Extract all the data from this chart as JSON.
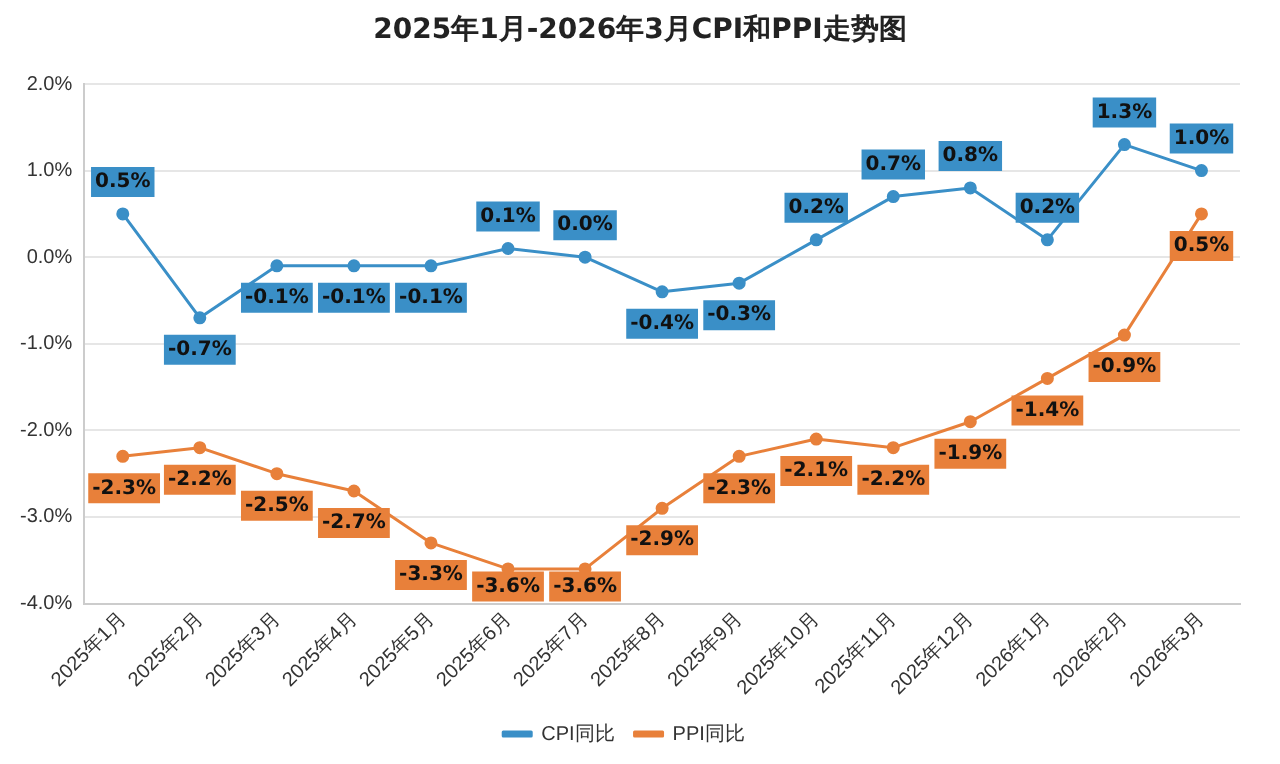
{
  "chart_data": {
    "type": "line",
    "title": "2025年1月-2026年3月CPI和PPI走势图",
    "categories": [
      "2025年1月",
      "2025年2月",
      "2025年3月",
      "2025年4月",
      "2025年5月",
      "2025年6月",
      "2025年7月",
      "2025年8月",
      "2025年9月",
      "2025年10月",
      "2025年11月",
      "2025年12月",
      "2026年1月",
      "2026年2月",
      "2026年3月"
    ],
    "series": [
      {
        "name": "CPI同比",
        "color": "#3a8fc7",
        "values": [
          0.5,
          -0.7,
          -0.1,
          -0.1,
          -0.1,
          0.1,
          0.0,
          -0.4,
          -0.3,
          0.2,
          0.7,
          0.8,
          0.2,
          1.3,
          1.0
        ],
        "value_labels": [
          "0.5%",
          "-0.7%",
          "-0.1%",
          "-0.1%",
          "-0.1%",
          "0.1%",
          "0.0%",
          "-0.4%",
          "-0.3%",
          "0.2%",
          "0.7%",
          "0.8%",
          "0.2%",
          "1.3%",
          "1.0%"
        ]
      },
      {
        "name": "PPI同比",
        "color": "#e8803a",
        "values": [
          -2.3,
          -2.2,
          -2.5,
          -2.7,
          -3.3,
          -3.6,
          -3.6,
          -2.9,
          -2.3,
          -2.1,
          -2.2,
          -1.9,
          -1.4,
          -0.9,
          0.5
        ],
        "value_labels": [
          "-2.3%",
          "-2.2%",
          "-2.5%",
          "-2.7%",
          "-3.3%",
          "-3.6%",
          "-3.6%",
          "-2.9%",
          "-2.3%",
          "-2.1%",
          "-2.2%",
          "-1.9%",
          "-1.4%",
          "-0.9%",
          "0.5%"
        ]
      }
    ],
    "ylim": [
      -4,
      2
    ],
    "yticks": [
      {
        "value": -4,
        "label": "-4.0%"
      },
      {
        "value": -3,
        "label": "-3.0%"
      },
      {
        "value": -2,
        "label": "-2.0%"
      },
      {
        "value": -1,
        "label": "-1.0%"
      },
      {
        "value": 0,
        "label": "0.0%"
      },
      {
        "value": 1,
        "label": "1.0%"
      },
      {
        "value": 2,
        "label": "2.0%"
      }
    ],
    "grid": "y",
    "legend": "bottom",
    "marker": "circle",
    "line_style": "solid"
  }
}
